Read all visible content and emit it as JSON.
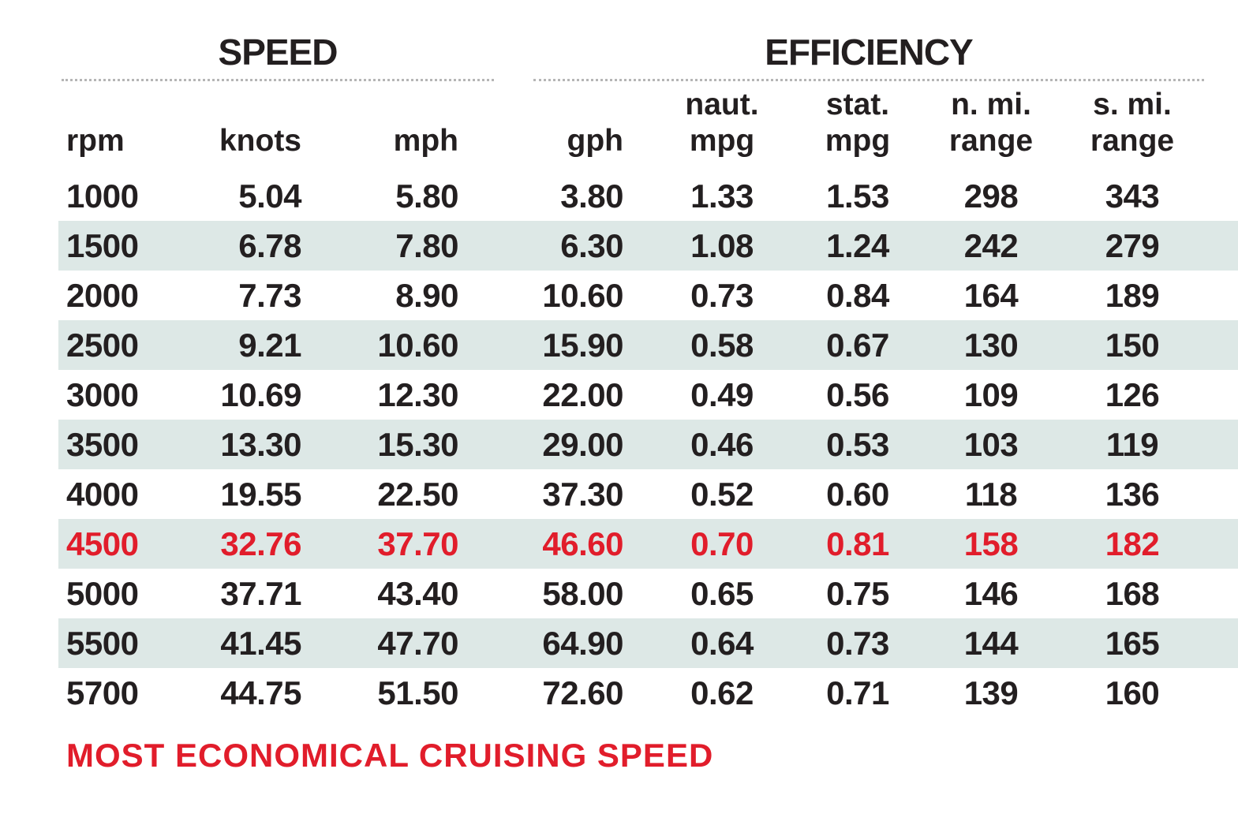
{
  "chart_data": {
    "type": "table",
    "column_groups": [
      {
        "label": "SPEED",
        "columns": [
          "rpm",
          "knots",
          "mph"
        ]
      },
      {
        "label": "EFFICIENCY",
        "columns": [
          "gph",
          "naut. mpg",
          "stat. mpg",
          "n. mi. range",
          "s. mi. range"
        ]
      }
    ],
    "headers": [
      [
        "rpm"
      ],
      [
        "knots"
      ],
      [
        "mph"
      ],
      [
        "gph"
      ],
      [
        "naut.",
        "mpg"
      ],
      [
        "stat.",
        "mpg"
      ],
      [
        "n. mi.",
        "range"
      ],
      [
        "s. mi.",
        "range"
      ]
    ],
    "rows": [
      [
        "1000",
        "5.04",
        "5.80",
        "3.80",
        "1.33",
        "1.53",
        "298",
        "343"
      ],
      [
        "1500",
        "6.78",
        "7.80",
        "6.30",
        "1.08",
        "1.24",
        "242",
        "279"
      ],
      [
        "2000",
        "7.73",
        "8.90",
        "10.60",
        "0.73",
        "0.84",
        "164",
        "189"
      ],
      [
        "2500",
        "9.21",
        "10.60",
        "15.90",
        "0.58",
        "0.67",
        "130",
        "150"
      ],
      [
        "3000",
        "10.69",
        "12.30",
        "22.00",
        "0.49",
        "0.56",
        "109",
        "126"
      ],
      [
        "3500",
        "13.30",
        "15.30",
        "29.00",
        "0.46",
        "0.53",
        "103",
        "119"
      ],
      [
        "4000",
        "19.55",
        "22.50",
        "37.30",
        "0.52",
        "0.60",
        "118",
        "136"
      ],
      [
        "4500",
        "32.76",
        "37.70",
        "46.60",
        "0.70",
        "0.81",
        "158",
        "182"
      ],
      [
        "5000",
        "37.71",
        "43.40",
        "58.00",
        "0.65",
        "0.75",
        "146",
        "168"
      ],
      [
        "5500",
        "41.45",
        "47.70",
        "64.90",
        "0.64",
        "0.73",
        "144",
        "165"
      ],
      [
        "5700",
        "44.75",
        "51.50",
        "72.60",
        "0.62",
        "0.71",
        "139",
        "160"
      ]
    ],
    "highlight_row_rpm": "4500",
    "highlight_label": "MOST ECONOMICAL CRUISING SPEED",
    "colors": {
      "text": "#231f20",
      "highlight": "#e11d2b",
      "row_shading": "#dde8e6",
      "rule": "#b5b5b5"
    }
  }
}
